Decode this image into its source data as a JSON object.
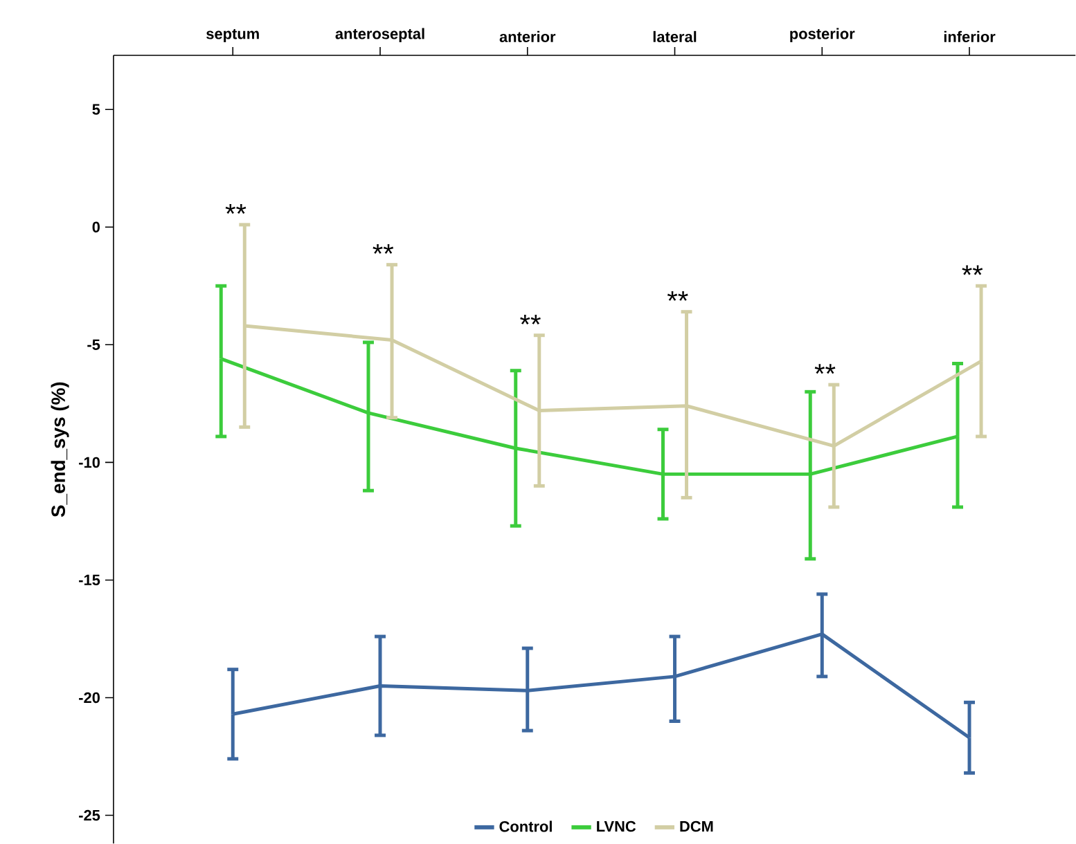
{
  "chart_data": {
    "type": "line",
    "ylabel": "S_end_sys (%)",
    "categories": [
      "septum",
      "anteroseptal",
      "anterior",
      "lateral",
      "posterior",
      "inferior"
    ],
    "ylim": [
      -26.2,
      7.3
    ],
    "yticks": [
      -25,
      -20,
      -15,
      -10,
      -5,
      0,
      5
    ],
    "grid": false,
    "legend": "bottom",
    "marker": "none",
    "series": [
      {
        "name": "Control",
        "color": "#3d68a0",
        "values": [
          -20.7,
          -19.5,
          -19.7,
          -19.1,
          -17.3,
          -21.7
        ],
        "errors": [
          [
            -22.6,
            -18.8
          ],
          [
            -21.6,
            -17.4
          ],
          [
            -21.4,
            -17.9
          ],
          [
            -21.0,
            -17.4
          ],
          [
            -19.1,
            -15.6
          ],
          [
            -23.2,
            -20.2
          ]
        ]
      },
      {
        "name": "LVNC",
        "color": "#3ccc3c",
        "values": [
          -5.6,
          -7.9,
          -9.4,
          -10.5,
          -10.5,
          -8.9
        ],
        "errors": [
          [
            -8.9,
            -2.5
          ],
          [
            -11.2,
            -4.9
          ],
          [
            -12.7,
            -6.1
          ],
          [
            -12.4,
            -8.6
          ],
          [
            -14.1,
            -7.0
          ],
          [
            -11.9,
            -5.8
          ]
        ]
      },
      {
        "name": "DCM",
        "color": "#d2cea4",
        "values": [
          -4.2,
          -4.8,
          -7.8,
          -7.6,
          -9.3,
          -5.7
        ],
        "errors": [
          [
            -8.5,
            0.1
          ],
          [
            -8.1,
            -1.6
          ],
          [
            -11.0,
            -4.6
          ],
          [
            -11.5,
            -3.6
          ],
          [
            -11.9,
            -6.7
          ],
          [
            -8.9,
            -2.5
          ]
        ]
      }
    ],
    "annotations": [
      "**",
      "**",
      "**",
      "**",
      "**",
      "**"
    ]
  }
}
